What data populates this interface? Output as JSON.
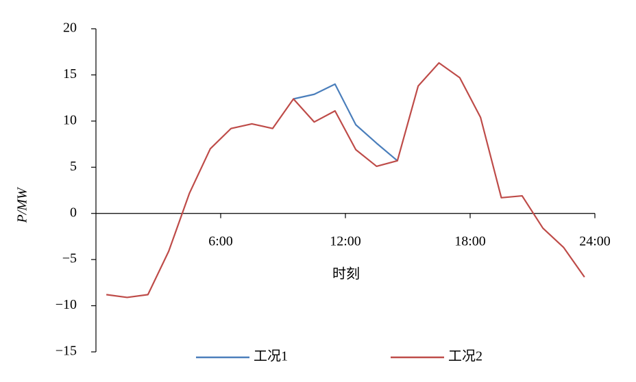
{
  "chart_data": {
    "type": "line",
    "x_label": "时刻",
    "y_label": "P/MW",
    "x": [
      0.5,
      1.5,
      2.5,
      3.5,
      4.5,
      5.5,
      6.5,
      7.5,
      8.5,
      9.5,
      10.5,
      11.5,
      12.5,
      13.5,
      14.5,
      15.5,
      16.5,
      17.5,
      18.5,
      19.5,
      20.5,
      21.5,
      22.5,
      23.5
    ],
    "series": [
      {
        "name": "工况1",
        "color": "#4a7ebb",
        "values": [
          null,
          null,
          null,
          null,
          null,
          null,
          null,
          null,
          null,
          12.4,
          12.9,
          14.0,
          9.6,
          7.6,
          5.7,
          null,
          null,
          null,
          null,
          null,
          null,
          null,
          null,
          null
        ]
      },
      {
        "name": "工况2",
        "color": "#be4b48",
        "values": [
          -8.8,
          -9.1,
          -8.8,
          -4.1,
          2.2,
          7.0,
          9.2,
          9.7,
          9.2,
          12.4,
          9.9,
          11.1,
          6.9,
          5.1,
          5.7,
          13.8,
          16.3,
          14.7,
          10.4,
          1.7,
          1.9,
          -1.6,
          -3.7,
          -6.9
        ]
      }
    ],
    "xlim": [
      0,
      24
    ],
    "xticks": [
      {
        "value": 6,
        "label": "6:00"
      },
      {
        "value": 12,
        "label": "12:00"
      },
      {
        "value": 18,
        "label": "18:00"
      },
      {
        "value": 24,
        "label": "24:00"
      }
    ],
    "ylim": [
      -15,
      20
    ],
    "yticks": [
      {
        "value": -15,
        "label": "−15"
      },
      {
        "value": -10,
        "label": "−10"
      },
      {
        "value": -5,
        "label": "−5"
      },
      0,
      5,
      10,
      15,
      20
    ],
    "grid": false,
    "legend": "bottom"
  }
}
